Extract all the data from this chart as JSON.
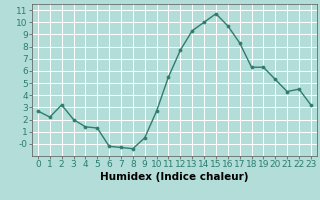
{
  "x": [
    0,
    1,
    2,
    3,
    4,
    5,
    6,
    7,
    8,
    9,
    10,
    11,
    12,
    13,
    14,
    15,
    16,
    17,
    18,
    19,
    20,
    21,
    22,
    23
  ],
  "y": [
    2.7,
    2.2,
    3.2,
    2.0,
    1.4,
    1.3,
    -0.2,
    -0.3,
    -0.4,
    0.5,
    2.7,
    5.5,
    7.7,
    9.3,
    10.0,
    10.7,
    9.7,
    8.3,
    6.3,
    6.3,
    5.3,
    4.3,
    4.5,
    3.2
  ],
  "line_color": "#2e7d6e",
  "marker": "o",
  "marker_size": 2.2,
  "bg_color": "#b2ddd8",
  "grid_color": "#ffffff",
  "xlabel": "Humidex (Indice chaleur)",
  "xlabel_fontsize": 7.5,
  "tick_fontsize": 6.5,
  "xlim": [
    -0.5,
    23.5
  ],
  "ylim": [
    -1,
    11.5
  ],
  "yticks": [
    0,
    1,
    2,
    3,
    4,
    5,
    6,
    7,
    8,
    9,
    10,
    11
  ],
  "ytick_labels": [
    "-0",
    "1",
    "2",
    "3",
    "4",
    "5",
    "6",
    "7",
    "8",
    "9",
    "10",
    "11"
  ],
  "xticks": [
    0,
    1,
    2,
    3,
    4,
    5,
    6,
    7,
    8,
    9,
    10,
    11,
    12,
    13,
    14,
    15,
    16,
    17,
    18,
    19,
    20,
    21,
    22,
    23
  ]
}
